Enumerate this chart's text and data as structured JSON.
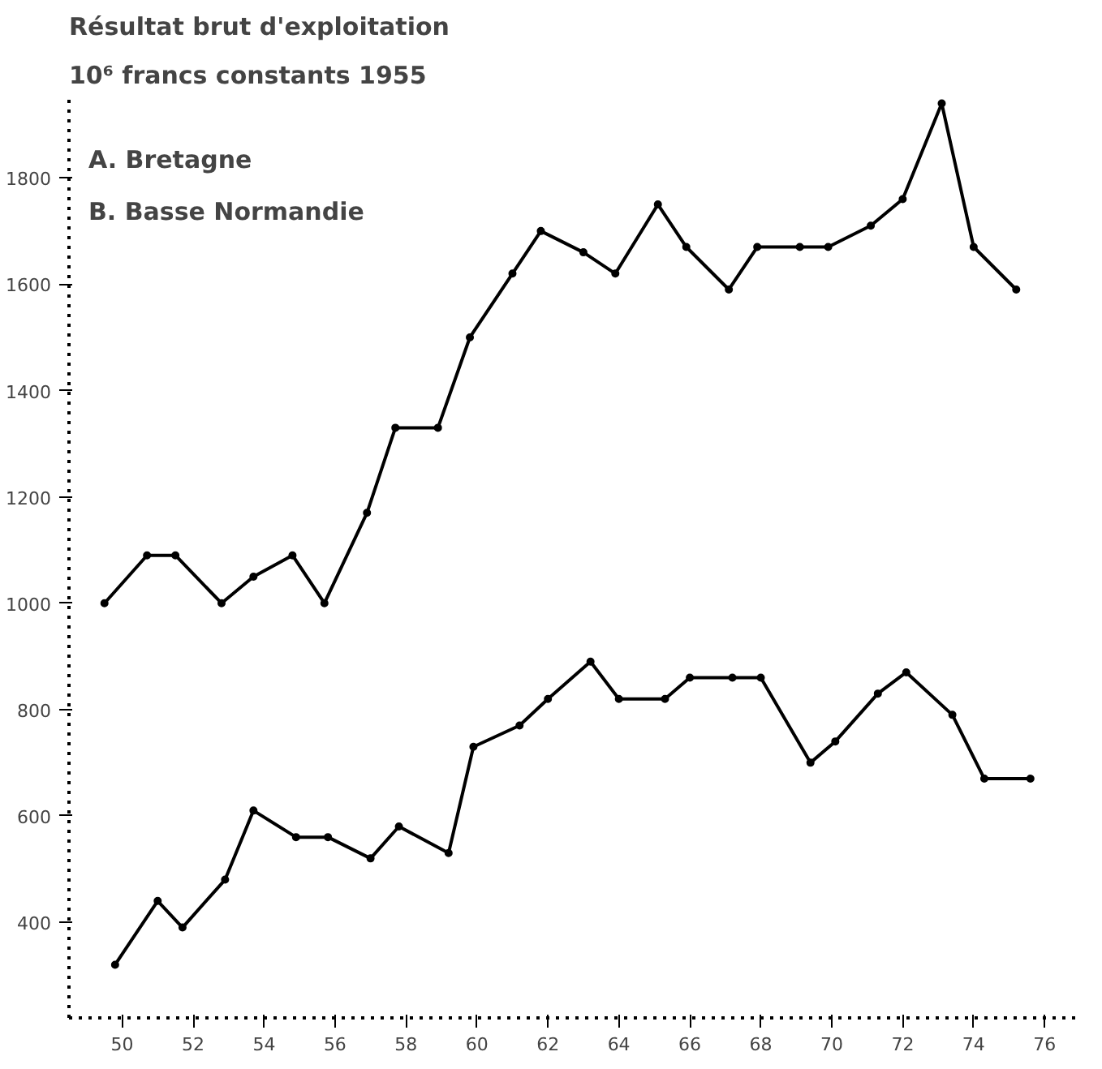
{
  "chart_data": {
    "type": "line",
    "title": "Résultat brut d'exploitation",
    "subtitle": "10⁶ francs constants 1955",
    "annotations": [
      "A. Bretagne",
      "B. Basse Normandie"
    ],
    "series": [
      {
        "color": "#000000",
        "x": [
          49.5,
          50.7,
          51.5,
          52.8,
          53.7,
          54.8,
          55.7,
          56.9,
          57.7,
          58.9,
          59.8,
          61.0,
          61.8,
          63.0,
          63.9,
          65.1,
          65.9,
          67.1,
          67.9,
          69.1,
          69.9,
          71.1,
          72.0,
          73.1,
          74.0,
          75.2
        ],
        "values": [
          1000,
          1090,
          1090,
          1000,
          1050,
          1090,
          1000,
          1170,
          1330,
          1330,
          1500,
          1620,
          1700,
          1660,
          1620,
          1750,
          1670,
          1590,
          1670,
          1670,
          1670,
          1710,
          1760,
          1940,
          1670,
          1590
        ]
      },
      {
        "color": "#000000",
        "x": [
          49.8,
          51.0,
          51.7,
          52.9,
          53.7,
          54.9,
          55.8,
          57.0,
          57.8,
          59.2,
          59.9,
          61.2,
          62.0,
          63.2,
          64.0,
          65.3,
          66.0,
          67.2,
          68.0,
          69.4,
          70.1,
          71.3,
          72.1,
          73.4,
          74.3,
          75.6
        ],
        "values": [
          320,
          440,
          390,
          480,
          610,
          560,
          560,
          520,
          580,
          530,
          730,
          770,
          820,
          890,
          820,
          820,
          860,
          860,
          860,
          700,
          740,
          830,
          870,
          790,
          670,
          670
        ]
      }
    ],
    "xlim": [
      48.5,
      77
    ],
    "ylim": [
      220,
      1950
    ],
    "xticks": [
      50,
      52,
      54,
      56,
      58,
      60,
      62,
      64,
      66,
      68,
      70,
      72,
      74,
      76
    ],
    "yticks": [
      400,
      600,
      800,
      1000,
      1200,
      1400,
      1600,
      1800
    ],
    "marker": "circle",
    "line_style": "solid",
    "grid": false
  }
}
